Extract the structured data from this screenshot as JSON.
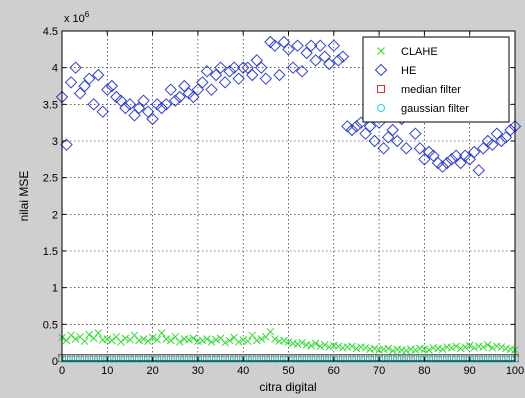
{
  "chart_data": {
    "type": "scatter",
    "title": "",
    "xlabel": "citra digital",
    "ylabel": "nilai MSE",
    "y_exponent_label": "x 10",
    "y_exponent": "6",
    "xlim": [
      0,
      100
    ],
    "ylim": [
      0,
      4500000
    ],
    "x_ticks": [
      "0",
      "10",
      "20",
      "30",
      "40",
      "50",
      "60",
      "70",
      "80",
      "90",
      "100"
    ],
    "y_ticks": [
      "0",
      "0.5",
      "1",
      "1.5",
      "2",
      "2.5",
      "3",
      "3.5",
      "4",
      "4.5"
    ],
    "grid": true,
    "legend_position": "top-right",
    "x": [
      0,
      1,
      2,
      3,
      4,
      5,
      6,
      7,
      8,
      9,
      10,
      11,
      12,
      13,
      14,
      15,
      16,
      17,
      18,
      19,
      20,
      21,
      22,
      23,
      24,
      25,
      26,
      27,
      28,
      29,
      30,
      31,
      32,
      33,
      34,
      35,
      36,
      37,
      38,
      39,
      40,
      41,
      42,
      43,
      44,
      45,
      46,
      47,
      48,
      49,
      50,
      51,
      52,
      53,
      54,
      55,
      56,
      57,
      58,
      59,
      60,
      61,
      62,
      63,
      64,
      65,
      66,
      67,
      68,
      69,
      70,
      71,
      72,
      73,
      74,
      75,
      76,
      77,
      78,
      79,
      80,
      81,
      82,
      83,
      84,
      85,
      86,
      87,
      88,
      89,
      90,
      91,
      92,
      93,
      94,
      95,
      96,
      97,
      98,
      99,
      100
    ],
    "series": [
      {
        "name": "CLAHE",
        "marker": "x",
        "color": "#33dd33",
        "values": [
          320000,
          280000,
          350000,
          300000,
          330000,
          270000,
          360000,
          310000,
          380000,
          290000,
          300000,
          280000,
          330000,
          260000,
          310000,
          290000,
          350000,
          280000,
          300000,
          270000,
          320000,
          290000,
          380000,
          300000,
          280000,
          330000,
          260000,
          300000,
          290000,
          310000,
          270000,
          280000,
          300000,
          260000,
          290000,
          310000,
          250000,
          280000,
          320000,
          260000,
          290000,
          270000,
          350000,
          280000,
          300000,
          330000,
          400000,
          300000,
          270000,
          280000,
          260000,
          240000,
          230000,
          250000,
          220000,
          210000,
          240000,
          200000,
          220000,
          190000,
          210000,
          200000,
          180000,
          190000,
          200000,
          170000,
          190000,
          180000,
          160000,
          170000,
          150000,
          160000,
          170000,
          140000,
          160000,
          150000,
          140000,
          160000,
          150000,
          170000,
          160000,
          150000,
          180000,
          170000,
          160000,
          190000,
          180000,
          200000,
          170000,
          190000,
          210000,
          180000,
          200000,
          190000,
          220000,
          180000,
          200000,
          190000,
          170000,
          160000,
          150000
        ]
      },
      {
        "name": "HE",
        "marker": "diamond",
        "color": "#2f3fd8",
        "values": [
          3600000,
          2950000,
          3800000,
          4000000,
          3650000,
          3750000,
          3850000,
          3500000,
          3900000,
          3400000,
          3700000,
          3750000,
          3600000,
          3550000,
          3450000,
          3500000,
          3350000,
          3450000,
          3550000,
          3400000,
          3300000,
          3500000,
          3450000,
          3500000,
          3700000,
          3550000,
          3600000,
          3750000,
          3650000,
          3600000,
          3700000,
          3800000,
          3950000,
          3700000,
          3900000,
          4000000,
          3800000,
          3950000,
          4000000,
          3850000,
          4000000,
          4000000,
          3900000,
          4100000,
          4000000,
          3850000,
          4350000,
          4300000,
          3900000,
          4350000,
          4250000,
          4000000,
          4300000,
          3950000,
          4200000,
          4300000,
          4100000,
          4300000,
          4150000,
          4050000,
          4300000,
          4100000,
          4150000,
          3200000,
          3150000,
          3200000,
          3250000,
          3100000,
          3200000,
          3000000,
          3250000,
          2900000,
          3050000,
          3150000,
          3000000,
          3300000,
          2900000,
          3350000,
          3100000,
          2900000,
          2750000,
          2850000,
          2800000,
          2700000,
          2650000,
          2700000,
          2750000,
          2800000,
          2700000,
          2800000,
          2750000,
          2850000,
          2600000,
          2900000,
          3000000,
          2950000,
          3100000,
          3000000,
          3050000,
          3150000,
          3200000
        ]
      },
      {
        "name": "median filter",
        "marker": "square",
        "color": "#e03030",
        "values": [
          40000,
          40000,
          40000,
          40000,
          40000,
          40000,
          40000,
          40000,
          40000,
          40000,
          40000,
          40000,
          40000,
          40000,
          40000,
          40000,
          40000,
          40000,
          40000,
          40000,
          40000,
          40000,
          40000,
          40000,
          40000,
          40000,
          40000,
          40000,
          40000,
          40000,
          40000,
          40000,
          40000,
          40000,
          40000,
          40000,
          40000,
          40000,
          40000,
          40000,
          40000,
          40000,
          40000,
          40000,
          40000,
          40000,
          40000,
          40000,
          40000,
          40000,
          40000,
          40000,
          40000,
          40000,
          40000,
          40000,
          40000,
          40000,
          40000,
          40000,
          40000,
          40000,
          40000,
          40000,
          40000,
          40000,
          40000,
          40000,
          40000,
          40000,
          40000,
          40000,
          40000,
          40000,
          40000,
          40000,
          40000,
          40000,
          40000,
          40000,
          40000,
          40000,
          40000,
          40000,
          40000,
          40000,
          40000,
          40000,
          40000,
          40000,
          40000,
          40000,
          40000,
          40000,
          40000,
          40000,
          40000,
          40000,
          40000,
          40000,
          40000
        ]
      },
      {
        "name": "gaussian filter",
        "marker": "circle",
        "color": "#22d8d8",
        "values": [
          30000,
          30000,
          30000,
          30000,
          30000,
          30000,
          30000,
          30000,
          30000,
          30000,
          30000,
          30000,
          30000,
          30000,
          30000,
          30000,
          30000,
          30000,
          30000,
          30000,
          30000,
          30000,
          30000,
          30000,
          30000,
          30000,
          30000,
          30000,
          30000,
          30000,
          30000,
          30000,
          30000,
          30000,
          30000,
          30000,
          30000,
          30000,
          30000,
          30000,
          30000,
          30000,
          30000,
          30000,
          30000,
          30000,
          30000,
          30000,
          30000,
          30000,
          30000,
          30000,
          30000,
          30000,
          30000,
          30000,
          30000,
          30000,
          30000,
          30000,
          30000,
          30000,
          30000,
          30000,
          30000,
          30000,
          30000,
          30000,
          30000,
          30000,
          30000,
          30000,
          30000,
          30000,
          30000,
          30000,
          30000,
          30000,
          30000,
          30000,
          30000,
          30000,
          30000,
          30000,
          30000,
          30000,
          30000,
          30000,
          30000,
          30000,
          30000,
          30000,
          30000,
          30000,
          30000,
          30000,
          30000,
          30000,
          30000,
          30000,
          30000
        ]
      }
    ]
  }
}
